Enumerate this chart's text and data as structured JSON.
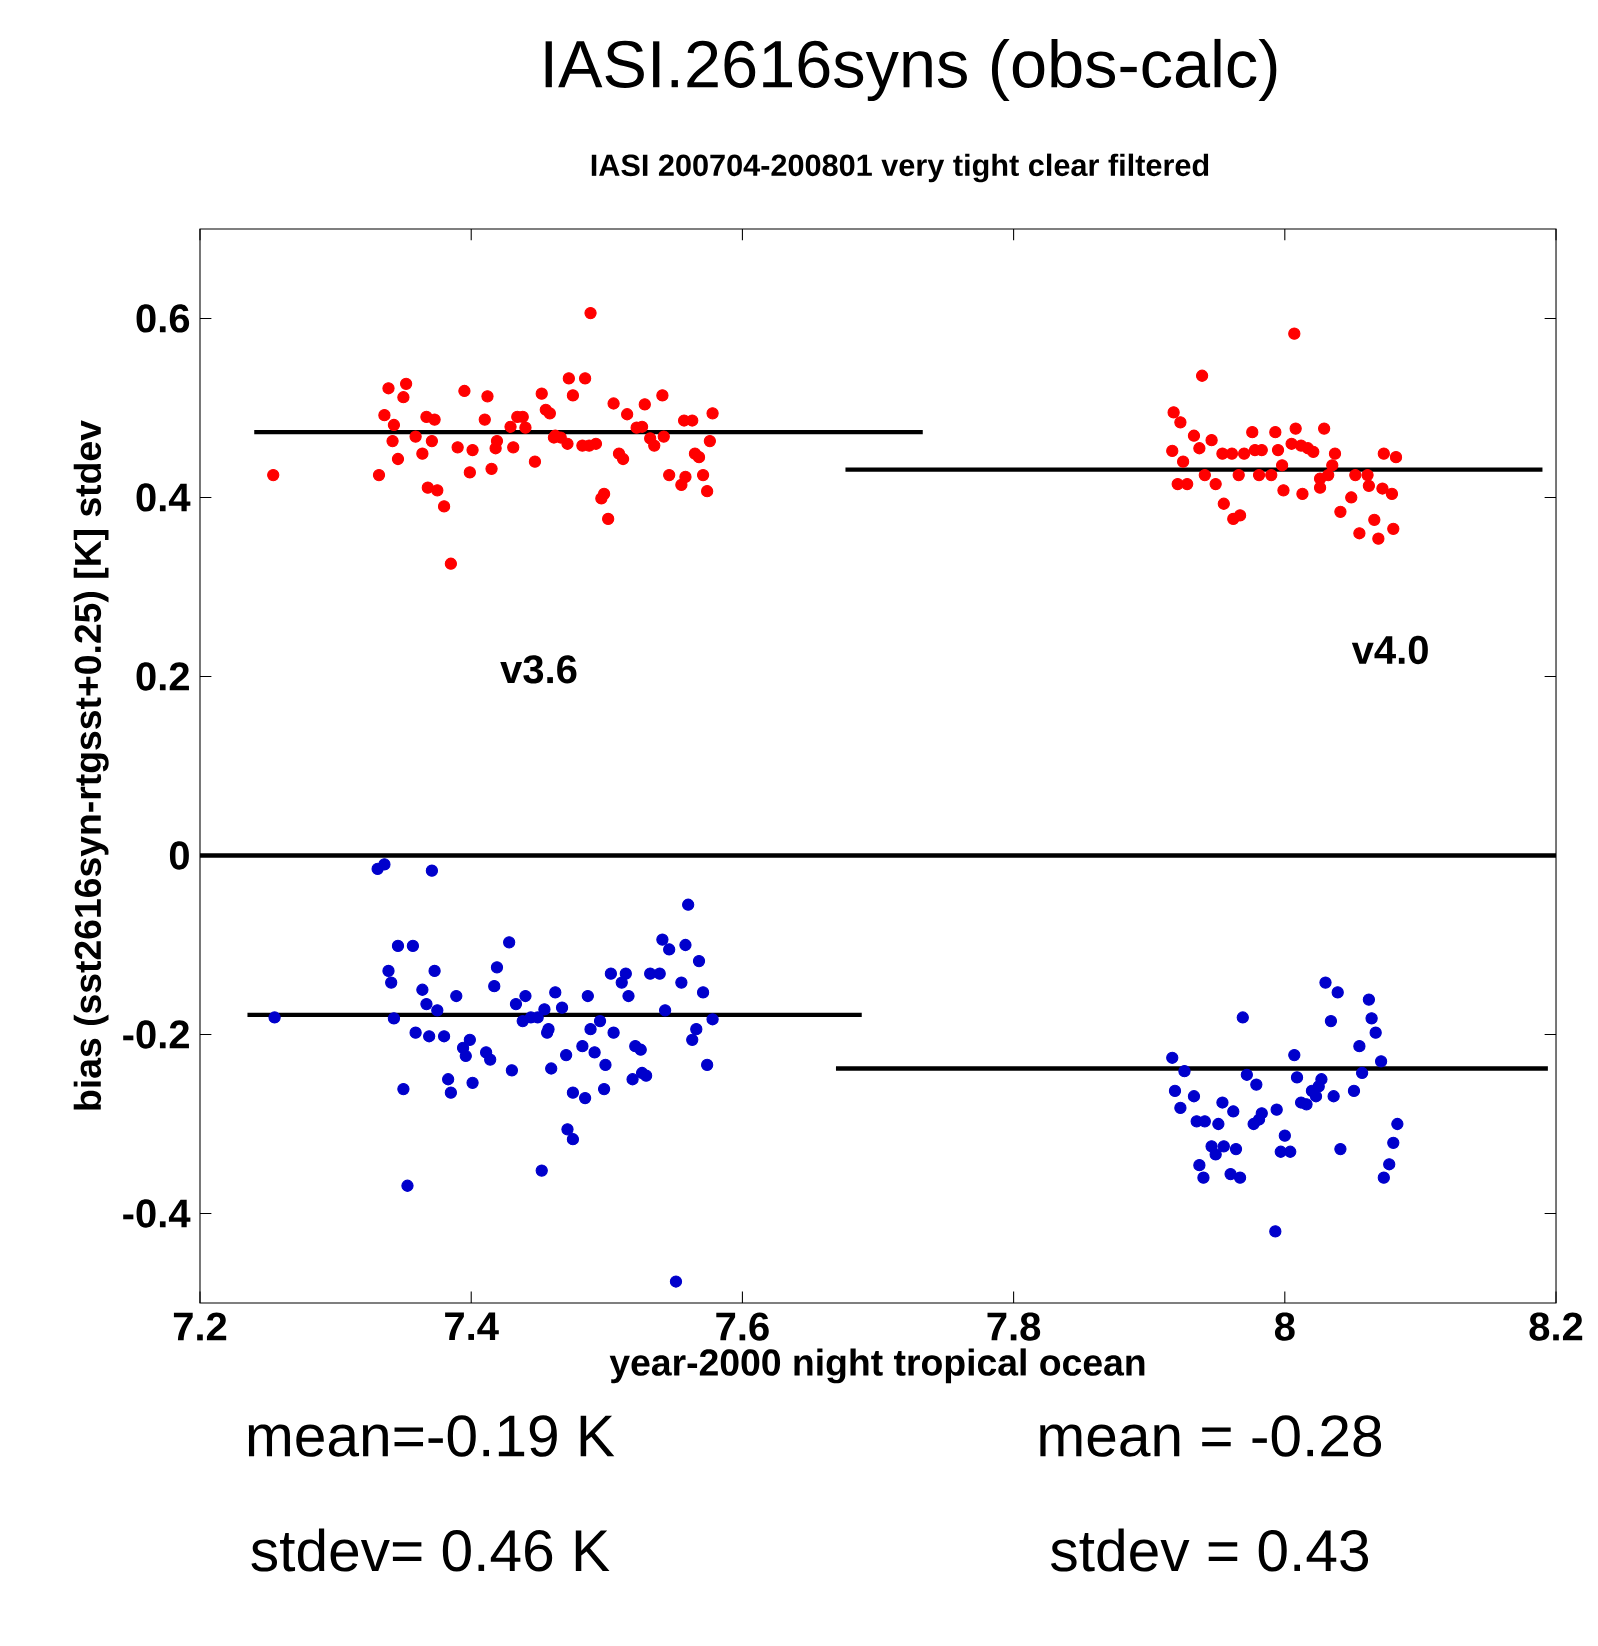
{
  "chart_data": {
    "type": "scatter",
    "title": "IASI.2616syns (obs-calc)",
    "subtitle": "IASI 200704-200801 very tight clear filtered",
    "xlabel": "year-2000  night tropical ocean",
    "ylabel": "bias    (sst2616syn-rtgsst+0.25) [K] stdev",
    "xlim": [
      7.2,
      8.2
    ],
    "ylim": [
      -0.5,
      0.7
    ],
    "xticks": [
      7.2,
      7.4,
      7.6,
      7.8,
      8,
      8.2
    ],
    "yticks": [
      -0.4,
      -0.2,
      0,
      0.2,
      0.4,
      0.6
    ],
    "ref_lines": [
      {
        "axis": "y",
        "value": 0,
        "color": "#000000"
      }
    ],
    "annotations": [
      "v3.6",
      "v4.0",
      "mean=-0.19 K",
      "mean = -0.28",
      "stdev= 0.46 K",
      "stdev = 0.43"
    ],
    "series": [
      {
        "marker": "circle",
        "color": "#ff0000",
        "x": [
          7.254,
          7.332,
          7.339,
          7.352,
          7.35,
          7.336,
          7.343,
          7.342,
          7.346,
          7.359,
          7.364,
          7.367,
          7.373,
          7.371,
          7.368,
          7.375,
          7.38,
          7.385,
          7.39,
          7.395,
          7.399,
          7.401,
          7.412,
          7.41,
          7.415,
          7.418,
          7.419,
          7.431,
          7.429,
          7.434,
          7.438,
          7.44,
          7.447,
          7.452,
          7.455,
          7.458,
          7.461,
          7.466,
          7.471,
          7.472,
          7.475,
          7.484,
          7.488,
          7.482,
          7.492,
          7.496,
          7.498,
          7.501,
          7.505,
          7.509,
          7.512,
          7.515,
          7.522,
          7.526,
          7.528,
          7.532,
          7.535,
          7.541,
          7.542,
          7.546,
          7.555,
          7.558,
          7.557,
          7.563,
          7.565,
          7.568,
          7.571,
          7.574,
          7.576,
          7.578,
          7.487,
          7.462,
          7.939,
          8.007,
          7.918,
          7.923,
          7.933,
          7.937,
          7.946,
          7.917,
          7.925,
          7.921,
          7.928,
          7.941,
          7.949,
          7.955,
          7.962,
          7.967,
          7.954,
          7.961,
          7.97,
          7.976,
          7.978,
          7.983,
          7.981,
          7.993,
          7.995,
          7.998,
          7.999,
          8.008,
          8.005,
          8.012,
          8.013,
          8.017,
          8.021,
          8.029,
          8.026,
          8.026,
          8.032,
          8.037,
          8.035,
          8.041,
          8.049,
          8.052,
          8.061,
          8.055,
          8.062,
          8.066,
          8.069,
          8.073,
          8.072,
          8.079,
          8.08,
          8.082,
          7.966,
          7.99
        ],
        "values": [
          0.425,
          0.425,
          0.522,
          0.527,
          0.512,
          0.492,
          0.481,
          0.463,
          0.443,
          0.468,
          0.449,
          0.49,
          0.487,
          0.463,
          0.411,
          0.408,
          0.39,
          0.326,
          0.456,
          0.519,
          0.428,
          0.453,
          0.513,
          0.487,
          0.432,
          0.455,
          0.463,
          0.456,
          0.479,
          0.49,
          0.49,
          0.478,
          0.44,
          0.516,
          0.498,
          0.494,
          0.467,
          0.467,
          0.46,
          0.533,
          0.514,
          0.533,
          0.606,
          0.458,
          0.46,
          0.399,
          0.404,
          0.376,
          0.505,
          0.449,
          0.443,
          0.493,
          0.478,
          0.479,
          0.504,
          0.466,
          0.458,
          0.514,
          0.468,
          0.425,
          0.414,
          0.423,
          0.486,
          0.486,
          0.449,
          0.445,
          0.425,
          0.407,
          0.463,
          0.494,
          0.458,
          0.469,
          0.536,
          0.583,
          0.495,
          0.484,
          0.469,
          0.455,
          0.464,
          0.452,
          0.44,
          0.415,
          0.415,
          0.425,
          0.415,
          0.393,
          0.376,
          0.38,
          0.449,
          0.449,
          0.449,
          0.473,
          0.453,
          0.453,
          0.425,
          0.473,
          0.453,
          0.436,
          0.408,
          0.477,
          0.46,
          0.458,
          0.404,
          0.455,
          0.451,
          0.477,
          0.421,
          0.411,
          0.425,
          0.449,
          0.436,
          0.384,
          0.4,
          0.425,
          0.425,
          0.36,
          0.413,
          0.375,
          0.354,
          0.449,
          0.41,
          0.404,
          0.365,
          0.445,
          0.425,
          0.425
        ]
      },
      {
        "marker": "circle",
        "color": "#0000cc",
        "x": [
          7.331,
          7.336,
          7.371,
          7.346,
          7.357,
          7.339,
          7.341,
          7.373,
          7.364,
          7.367,
          7.375,
          7.343,
          7.359,
          7.369,
          7.38,
          7.389,
          7.394,
          7.399,
          7.396,
          7.401,
          7.383,
          7.385,
          7.35,
          7.353,
          7.411,
          7.414,
          7.417,
          7.419,
          7.428,
          7.43,
          7.433,
          7.44,
          7.438,
          7.444,
          7.454,
          7.449,
          7.457,
          7.462,
          7.467,
          7.456,
          7.459,
          7.47,
          7.475,
          7.484,
          7.471,
          7.475,
          7.452,
          7.482,
          7.486,
          7.488,
          7.491,
          7.495,
          7.498,
          7.499,
          7.503,
          7.505,
          7.511,
          7.514,
          7.516,
          7.519,
          7.521,
          7.525,
          7.529,
          7.526,
          7.532,
          7.539,
          7.541,
          7.546,
          7.543,
          7.551,
          7.555,
          7.558,
          7.56,
          7.563,
          7.566,
          7.568,
          7.571,
          7.574,
          7.578,
          7.255,
          7.917,
          7.926,
          7.919,
          7.923,
          7.933,
          7.935,
          7.941,
          7.951,
          7.954,
          7.962,
          7.946,
          7.949,
          7.955,
          7.964,
          7.937,
          7.94,
          7.96,
          7.967,
          7.969,
          7.972,
          7.979,
          7.983,
          7.981,
          7.977,
          7.994,
          8.0,
          7.997,
          8.004,
          8.007,
          8.009,
          8.012,
          8.016,
          8.02,
          8.023,
          8.027,
          8.025,
          8.03,
          8.034,
          8.039,
          8.036,
          8.041,
          8.051,
          8.055,
          8.057,
          8.062,
          8.064,
          8.067,
          8.071,
          8.073,
          8.077,
          8.08,
          8.083,
          7.993
        ],
        "values": [
          -0.015,
          -0.01,
          -0.017,
          -0.101,
          -0.101,
          -0.129,
          -0.142,
          -0.129,
          -0.15,
          -0.166,
          -0.173,
          -0.182,
          -0.198,
          -0.202,
          -0.202,
          -0.157,
          -0.215,
          -0.206,
          -0.224,
          -0.254,
          -0.25,
          -0.265,
          -0.261,
          -0.369,
          -0.22,
          -0.228,
          -0.146,
          -0.125,
          -0.097,
          -0.24,
          -0.166,
          -0.157,
          -0.185,
          -0.181,
          -0.172,
          -0.181,
          -0.194,
          -0.153,
          -0.17,
          -0.198,
          -0.238,
          -0.223,
          -0.265,
          -0.271,
          -0.306,
          -0.317,
          -0.352,
          -0.213,
          -0.157,
          -0.194,
          -0.22,
          -0.185,
          -0.261,
          -0.234,
          -0.132,
          -0.198,
          -0.142,
          -0.132,
          -0.157,
          -0.25,
          -0.213,
          -0.217,
          -0.246,
          -0.243,
          -0.132,
          -0.132,
          -0.094,
          -0.105,
          -0.173,
          -0.476,
          -0.142,
          -0.1,
          -0.055,
          -0.206,
          -0.194,
          -0.118,
          -0.153,
          -0.234,
          -0.183,
          -0.181,
          -0.226,
          -0.241,
          -0.263,
          -0.282,
          -0.269,
          -0.297,
          -0.297,
          -0.3,
          -0.276,
          -0.286,
          -0.325,
          -0.334,
          -0.325,
          -0.328,
          -0.346,
          -0.36,
          -0.356,
          -0.36,
          -0.181,
          -0.245,
          -0.256,
          -0.288,
          -0.295,
          -0.3,
          -0.284,
          -0.313,
          -0.331,
          -0.331,
          -0.223,
          -0.248,
          -0.276,
          -0.278,
          -0.263,
          -0.269,
          -0.25,
          -0.258,
          -0.142,
          -0.185,
          -0.153,
          -0.269,
          -0.328,
          -0.263,
          -0.213,
          -0.243,
          -0.161,
          -0.182,
          -0.198,
          -0.23,
          -0.36,
          -0.345,
          -0.321,
          -0.3,
          -0.42
        ]
      },
      {
        "type": "line",
        "marker": "none",
        "color": "#000000",
        "x": [
          7.24,
          7.733
        ],
        "values": [
          0.473,
          0.473
        ]
      },
      {
        "type": "line",
        "marker": "none",
        "color": "#000000",
        "x": [
          7.676,
          8.19
        ],
        "values": [
          0.431,
          0.431
        ]
      },
      {
        "type": "line",
        "marker": "none",
        "color": "#000000",
        "x": [
          7.235,
          7.688
        ],
        "values": [
          -0.178,
          -0.178
        ]
      },
      {
        "type": "line",
        "marker": "none",
        "color": "#000000",
        "x": [
          7.669,
          8.194
        ],
        "values": [
          -0.238,
          -0.238
        ]
      }
    ]
  }
}
